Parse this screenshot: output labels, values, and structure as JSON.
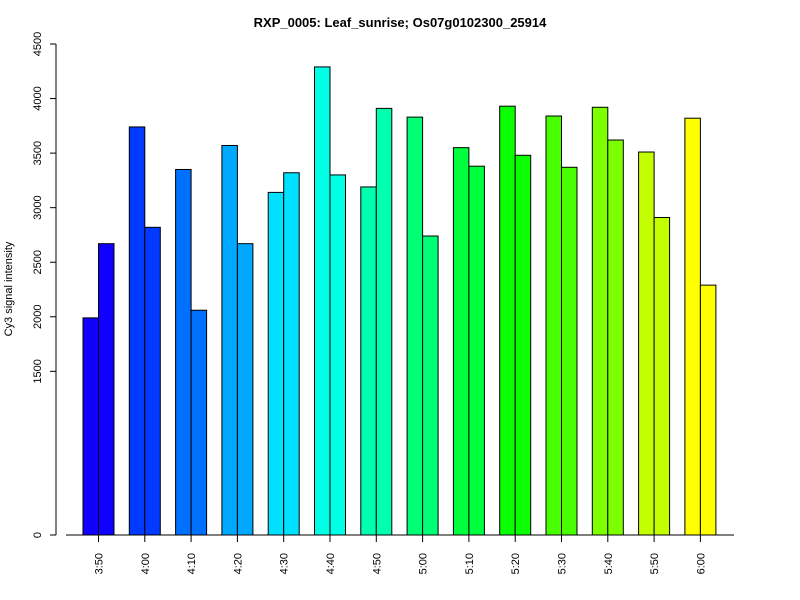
{
  "chart_data": {
    "type": "bar",
    "title": "RXP_0005: Leaf_sunrise; Os07g0102300_25914",
    "xlabel": "",
    "ylabel": "Cy3 signal intensity",
    "categories": [
      "3:50",
      "4:00",
      "4:10",
      "4:20",
      "4:30",
      "4:40",
      "4:50",
      "5:00",
      "5:10",
      "5:20",
      "5:30",
      "5:40",
      "5:50",
      "6:00"
    ],
    "series": [
      {
        "values": [
          1990,
          3740,
          3350,
          3570,
          3140,
          4290,
          3190,
          3830,
          3550,
          3930,
          3840,
          3920,
          3510,
          3820
        ]
      },
      {
        "values": [
          2670,
          2820,
          2060,
          2670,
          3320,
          3300,
          3910,
          2740,
          3380,
          3480,
          3370,
          3620,
          2910,
          2290
        ]
      }
    ],
    "group_colors": [
      "#0f00ff",
      "#0039ff",
      "#0070ff",
      "#00a8ff",
      "#00e0ff",
      "#00ffe5",
      "#00ffae",
      "#00ff74",
      "#00ff3c",
      "#0aff00",
      "#47ff00",
      "#7dff00",
      "#c3ff00",
      "#ffff00"
    ],
    "y_ticks": [
      0,
      1500,
      2000,
      2500,
      3000,
      3500,
      4000,
      4500
    ],
    "ylim": [
      0,
      4500
    ],
    "grid": false,
    "legend": "none"
  }
}
